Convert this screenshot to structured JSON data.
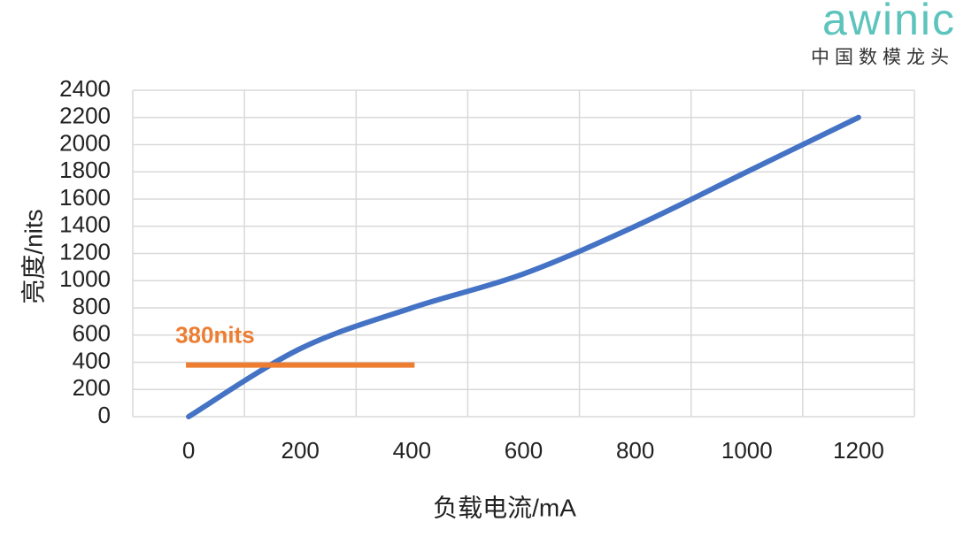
{
  "chart_data": {
    "type": "line",
    "x_label": "负载电流/mA",
    "y_label": "亮度/nits",
    "categories": [
      "0",
      "200",
      "400",
      "600",
      "800",
      "1000",
      "1200"
    ],
    "series": [
      {
        "name": "亮度",
        "color": "#4472c4",
        "values": [
          0,
          500,
          800,
          1050,
          1400,
          1800,
          2200
        ]
      }
    ],
    "ylim": [
      0,
      2400
    ],
    "yticks": [
      0,
      200,
      400,
      600,
      800,
      1000,
      1200,
      1400,
      1600,
      1800,
      2000,
      2200,
      2400
    ],
    "grid": true,
    "legend": false,
    "reference_line": {
      "label": "380nits",
      "value": 380,
      "color": "#ed7d31"
    }
  },
  "logo": {
    "brand": "awinic",
    "tagline": "中国数模龙头"
  }
}
